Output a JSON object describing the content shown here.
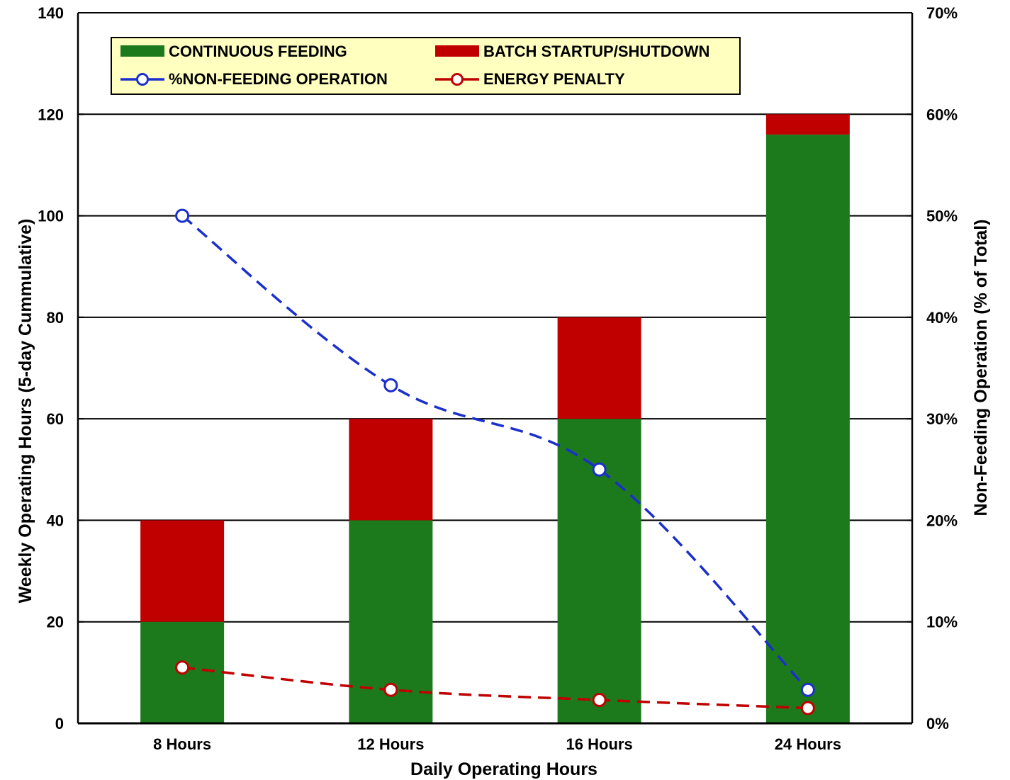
{
  "chart_data": {
    "type": "bar",
    "stacked": true,
    "categories": [
      "8 Hours",
      "12 Hours",
      "16 Hours",
      "24 Hours"
    ],
    "xlabel": "Daily Operating Hours",
    "ylabel": "Weekly Operating Hours (5-day Cummulative)",
    "ylabel_right": "Non-Feeding Operation (% of Total)",
    "ylim": [
      0,
      140
    ],
    "y_ticks": [
      "0",
      "20",
      "40",
      "60",
      "80",
      "100",
      "120",
      "140"
    ],
    "ylim_right": [
      0,
      70
    ],
    "y_ticks_right": [
      "0%",
      "10%",
      "20%",
      "30%",
      "40%",
      "50%",
      "60%",
      "70%"
    ],
    "grid": true,
    "legend_position": "top-left",
    "series": [
      {
        "name": "CONTINUOUS FEEDING",
        "kind": "bar",
        "axis": "left",
        "color": "#1c7a1c",
        "values": [
          20,
          40,
          60,
          116
        ]
      },
      {
        "name": "BATCH STARTUP/SHUTDOWN",
        "kind": "bar",
        "axis": "left",
        "color": "#c00000",
        "values": [
          20,
          20,
          20,
          4
        ]
      },
      {
        "name": "%NON-FEEDING OPERATION",
        "kind": "line",
        "axis": "right",
        "color": "#1a2fcc",
        "line_style": "dashed",
        "values": [
          50,
          33.3,
          25,
          3.3
        ]
      },
      {
        "name": "ENERGY PENALTY",
        "kind": "line",
        "axis": "right",
        "color": "#c00000",
        "line_style": "dashed",
        "values": [
          5.5,
          3.3,
          2.3,
          1.5
        ]
      }
    ]
  }
}
